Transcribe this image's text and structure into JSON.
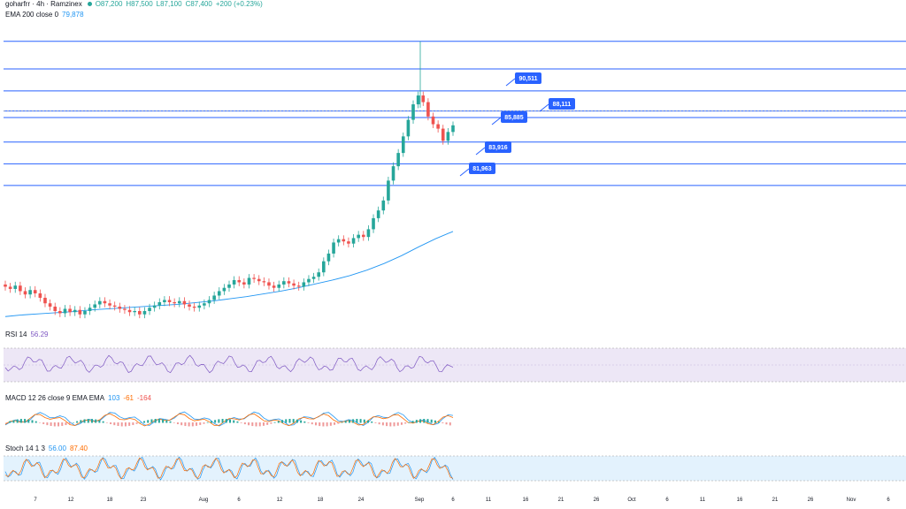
{
  "header": {
    "symbol": "goharfrr · 4h · Ramzinex",
    "open": "O87,200",
    "high": "H87,500",
    "low": "L87,100",
    "close": "C87,400",
    "change": "+200 (+0.23%)"
  },
  "ema": {
    "label": "EMA 200 close 0",
    "value": "79,878"
  },
  "rsi": {
    "label": "RSI 14",
    "value": "56.29"
  },
  "macd": {
    "label": "MACD 12 26 close 9 EMA EMA",
    "v1": "103",
    "v2": "-61",
    "v3": "-164"
  },
  "stoch": {
    "label": "Stoch 14 1 3",
    "k": "56.00",
    "d": "87.40"
  },
  "colors": {
    "up": "#26a69a",
    "down": "#ef5350",
    "level": "#2962ff",
    "ema": "#2196f3",
    "rsi": "#7e57c2",
    "macd": "#2196f3",
    "signal": "#ff6d00",
    "stoch_band": "#e3f2fd"
  },
  "chart_data": {
    "type": "candlestick",
    "x_ticks": [
      "7",
      "12",
      "18",
      "23",
      "Aug",
      "6",
      "12",
      "18",
      "24",
      "Sep",
      "6",
      "11",
      "16",
      "21",
      "26",
      "Oct",
      "6",
      "11",
      "16",
      "21",
      "26",
      "Nov",
      "6"
    ],
    "price_levels": [
      {
        "label": "90,511",
        "value": 90511
      },
      {
        "label": "88,111",
        "value": 88111
      },
      {
        "label": "85,885",
        "value": 85885
      },
      {
        "label": "83,916",
        "value": 83916
      },
      {
        "label": "81,963",
        "value": 81963
      }
    ],
    "extra_levels": [
      95000,
      92500,
      88700
    ],
    "price_close": [
      72800,
      72600,
      72900,
      72400,
      72100,
      72500,
      72200,
      71800,
      71300,
      71000,
      70600,
      70400,
      70800,
      70500,
      70700,
      70300,
      70600,
      70900,
      71200,
      71500,
      71300,
      71100,
      71000,
      70800,
      70700,
      70500,
      70600,
      70300,
      70600,
      70900,
      71100,
      71400,
      71600,
      71400,
      71300,
      71500,
      71200,
      71000,
      70900,
      71100,
      71300,
      71600,
      72000,
      72400,
      72700,
      73000,
      73400,
      73200,
      73000,
      73600,
      73500,
      73300,
      73200,
      72900,
      72700,
      73000,
      73300,
      73100,
      72900,
      72800,
      73200,
      73500,
      73700,
      74100,
      75100,
      75800,
      76800,
      77100,
      76900,
      76700,
      77200,
      77500,
      77300,
      78000,
      79000,
      79700,
      80600,
      82400,
      83700,
      84900,
      86400,
      87900,
      89300,
      90100,
      89500,
      88200,
      87500,
      87100,
      86000,
      86800,
      87400
    ],
    "ema_points": [
      70100,
      70250,
      70350,
      70450,
      70550,
      70700,
      70800,
      70900,
      71000,
      71100,
      71200,
      71350,
      71500,
      71700,
      71900,
      72150,
      72400,
      72700,
      73050,
      73400,
      73800,
      74300,
      74900,
      75600,
      76400,
      77150,
      77800
    ],
    "y_range": [
      69000,
      96500
    ],
    "rsi_range": [
      0,
      100
    ],
    "rsi_bands": [
      70,
      30
    ],
    "stoch_bands": [
      80,
      20
    ]
  }
}
